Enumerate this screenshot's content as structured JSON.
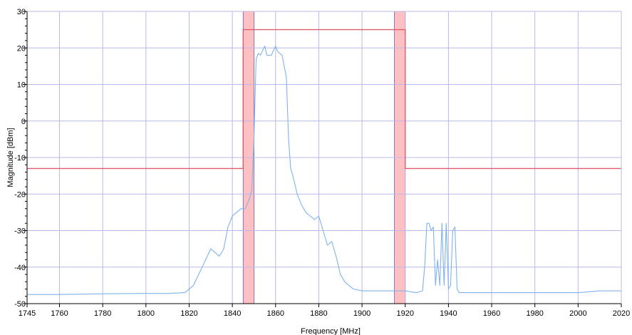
{
  "chart_data": {
    "type": "line",
    "title": "",
    "xlabel": "Frequency [MHz]",
    "ylabel": "Magnitude [dBm]",
    "xlim": [
      1745,
      2020
    ],
    "ylim": [
      -50,
      30
    ],
    "grid": true,
    "legend": "none",
    "x_ticks": [
      "1745",
      "1760",
      "1780",
      "1800",
      "1820",
      "1840",
      "1860",
      "1880",
      "1900",
      "1920",
      "1940",
      "1960",
      "1980",
      "2000",
      "2020"
    ],
    "x_tick_values": [
      1745,
      1760,
      1780,
      1800,
      1820,
      1840,
      1860,
      1880,
      1900,
      1920,
      1940,
      1960,
      1980,
      2000,
      2020
    ],
    "y_ticks": [
      "30",
      "20",
      "10",
      "0",
      "-10",
      "-20",
      "-30",
      "-40",
      "-50"
    ],
    "y_tick_values": [
      30,
      20,
      10,
      0,
      -10,
      -20,
      -30,
      -40,
      -50
    ],
    "bands": [
      {
        "x0": 1845,
        "x1": 1850,
        "color": "#ffb0b5"
      },
      {
        "x0": 1915,
        "x1": 1920,
        "color": "#ffb0b5"
      }
    ],
    "series": [
      {
        "kind": "spectrum",
        "color": "#7fb2ee",
        "x": [
          1745,
          1760,
          1780,
          1800,
          1810,
          1818,
          1822,
          1826,
          1830,
          1834,
          1836,
          1838,
          1840,
          1842,
          1844,
          1846,
          1848,
          1849,
          1850,
          1851,
          1852,
          1853,
          1855,
          1856,
          1858,
          1860,
          1861,
          1863,
          1865,
          1866,
          1867,
          1868,
          1870,
          1872,
          1874,
          1876,
          1878,
          1880,
          1882,
          1884,
          1886,
          1888,
          1890,
          1892,
          1894,
          1896,
          1900,
          1905,
          1910,
          1915,
          1920,
          1925,
          1928,
          1929,
          1930,
          1931,
          1932,
          1933,
          1934,
          1935,
          1936,
          1937,
          1938,
          1939,
          1940,
          1941,
          1942,
          1943,
          1944,
          1945,
          1960,
          1980,
          2000,
          2010,
          2020
        ],
        "y": [
          -47.5,
          -47.5,
          -47.3,
          -47.2,
          -47.2,
          -47,
          -45,
          -40,
          -35,
          -37,
          -35,
          -29,
          -26,
          -25,
          -24,
          -24,
          -21,
          -19,
          -5,
          17,
          18.5,
          18,
          20.5,
          18,
          18,
          20.5,
          19,
          18,
          12,
          -5,
          -13,
          -15,
          -20,
          -23,
          -25,
          -26,
          -27,
          -26,
          -30,
          -34,
          -33,
          -37,
          -42,
          -44,
          -45,
          -46,
          -46.5,
          -46.5,
          -46.5,
          -46.5,
          -46.5,
          -47,
          -46.5,
          -40,
          -28,
          -28,
          -30,
          -29,
          -45,
          -38,
          -45,
          -28,
          -45,
          -28,
          -46,
          -45,
          -30,
          -29,
          -46,
          -47,
          -47,
          -47,
          -47,
          -46.5,
          -46.5
        ]
      },
      {
        "kind": "mask",
        "color": "#e05a6a",
        "x": [
          1745,
          1845,
          1845,
          1920,
          1920,
          2020
        ],
        "y": [
          -13,
          -13,
          25,
          25,
          -13,
          -13
        ]
      }
    ]
  }
}
